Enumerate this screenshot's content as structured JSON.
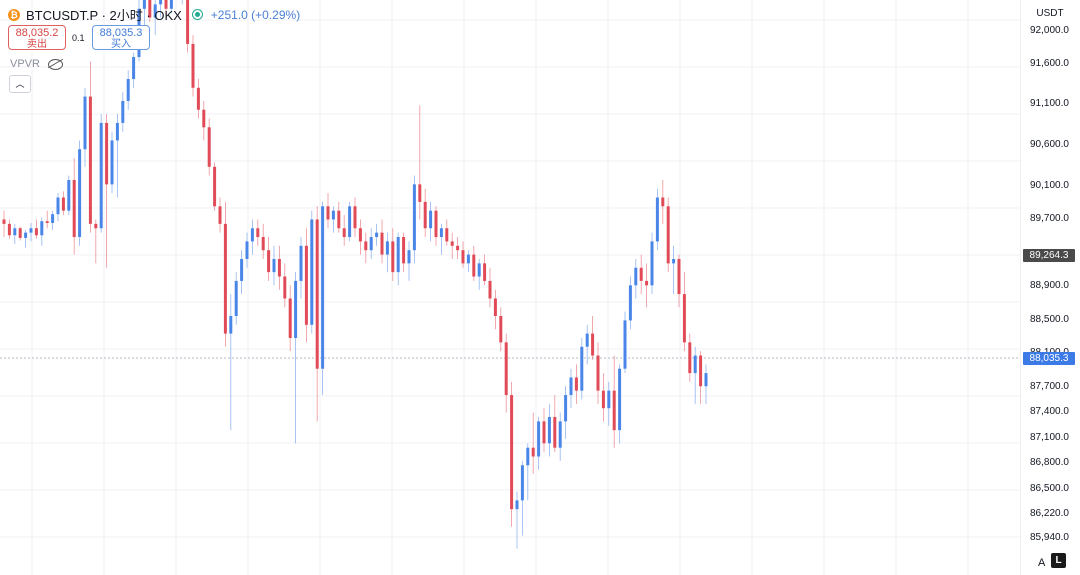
{
  "header": {
    "coin_icon": "bitcoin-icon",
    "title": "BTCUSDT.P · 2小时 · OKX",
    "change": "+251.0 (+0.29%)",
    "market_status_color": "#22ab94"
  },
  "trade": {
    "sell_price": "88,035.2",
    "sell_label": "卖出",
    "spread": "0.1",
    "buy_price": "88,035.3",
    "buy_label": "买入"
  },
  "indicator": {
    "name": "VPVR",
    "visibility_icon": "eye-off-icon",
    "collapse_icon": "chevron-up-icon"
  },
  "price_axis": {
    "unit": "USDT",
    "ticks": [
      "92,000.0",
      "91,600.0",
      "91,100.0",
      "90,600.0",
      "90,100.0",
      "89,700.0",
      "88,900.0",
      "88,500.0",
      "88,100.0",
      "87,700.0",
      "87,400.0",
      "87,100.0",
      "86,800.0",
      "86,500.0",
      "86,220.0",
      "85,940.0"
    ],
    "high_tag": "89,264.3",
    "last_tag": "88,035.3"
  },
  "bottom": {
    "auto_label": "A",
    "logo_icon": "tradingview-logo-icon",
    "logo_text": "L"
  },
  "colors": {
    "up": "#4a86e8",
    "down": "#e04b57",
    "grid": "#f0f2f5"
  },
  "chart_data": {
    "type": "candlestick",
    "symbol": "BTCUSDT.P",
    "interval": "2小时",
    "exchange": "OKX",
    "ylim": [
      85750,
      92300
    ],
    "last_price": 88035.3,
    "marked_price": 89264.3,
    "candles": [
      [
        89800,
        89900,
        89600,
        89750
      ],
      [
        89750,
        89800,
        89580,
        89620
      ],
      [
        89620,
        89750,
        89520,
        89700
      ],
      [
        89700,
        89720,
        89560,
        89590
      ],
      [
        89590,
        89680,
        89480,
        89650
      ],
      [
        89650,
        89760,
        89550,
        89700
      ],
      [
        89700,
        89800,
        89580,
        89620
      ],
      [
        89620,
        89820,
        89500,
        89780
      ],
      [
        89780,
        89900,
        89700,
        89760
      ],
      [
        89760,
        89900,
        89680,
        89860
      ],
      [
        89860,
        90100,
        89780,
        90050
      ],
      [
        90050,
        90120,
        89850,
        89900
      ],
      [
        89900,
        90300,
        89850,
        90250
      ],
      [
        90250,
        90500,
        89400,
        89600
      ],
      [
        89600,
        90700,
        89500,
        90600
      ],
      [
        90600,
        91300,
        90400,
        91200
      ],
      [
        91200,
        91600,
        89650,
        89750
      ],
      [
        89750,
        89800,
        89300,
        89700
      ],
      [
        89700,
        91000,
        89650,
        90900
      ],
      [
        90900,
        91000,
        89250,
        90200
      ],
      [
        90200,
        90800,
        90100,
        90700
      ],
      [
        90700,
        91000,
        90050,
        90900
      ],
      [
        90900,
        91250,
        90800,
        91150
      ],
      [
        91150,
        91500,
        91050,
        91400
      ],
      [
        91400,
        91700,
        91300,
        91650
      ],
      [
        91650,
        92300,
        91600,
        92200
      ],
      [
        92200,
        92350,
        92000,
        92300
      ],
      [
        92300,
        92500,
        92050,
        92100
      ],
      [
        92100,
        92400,
        91900,
        92250
      ],
      [
        92250,
        92500,
        92100,
        92300
      ],
      [
        92300,
        92400,
        92100,
        92200
      ],
      [
        92200,
        92500,
        92150,
        92450
      ],
      [
        92450,
        92600,
        92300,
        92350
      ],
      [
        92350,
        92500,
        92250,
        92400
      ],
      [
        92400,
        92500,
        91700,
        91800
      ],
      [
        91800,
        91900,
        91200,
        91300
      ],
      [
        91300,
        91400,
        90950,
        91050
      ],
      [
        91050,
        91150,
        90700,
        90850
      ],
      [
        90850,
        90950,
        90300,
        90400
      ],
      [
        90400,
        90450,
        89900,
        89950
      ],
      [
        89950,
        90050,
        89650,
        89750
      ],
      [
        89750,
        90000,
        88350,
        88500
      ],
      [
        88500,
        88950,
        87400,
        88700
      ],
      [
        88700,
        89200,
        88600,
        89100
      ],
      [
        89100,
        89450,
        88950,
        89350
      ],
      [
        89350,
        89650,
        89250,
        89550
      ],
      [
        89550,
        89800,
        89400,
        89700
      ],
      [
        89700,
        89800,
        89500,
        89600
      ],
      [
        89600,
        89750,
        89350,
        89450
      ],
      [
        89450,
        89600,
        89100,
        89200
      ],
      [
        89200,
        89500,
        89050,
        89350
      ],
      [
        89350,
        89500,
        89000,
        89150
      ],
      [
        89150,
        89300,
        88800,
        88900
      ],
      [
        88900,
        89050,
        88300,
        88450
      ],
      [
        88450,
        89200,
        87250,
        89100
      ],
      [
        89100,
        89600,
        88900,
        89500
      ],
      [
        89500,
        89700,
        88400,
        88600
      ],
      [
        88600,
        89900,
        88500,
        89800
      ],
      [
        89800,
        89950,
        87500,
        88100
      ],
      [
        88100,
        90000,
        87800,
        89950
      ],
      [
        89950,
        90100,
        89700,
        89800
      ],
      [
        89800,
        89950,
        89650,
        89900
      ],
      [
        89900,
        90000,
        89650,
        89700
      ],
      [
        89700,
        89850,
        89500,
        89600
      ],
      [
        89600,
        90000,
        89550,
        89950
      ],
      [
        89950,
        90050,
        89600,
        89700
      ],
      [
        89700,
        89800,
        89400,
        89550
      ],
      [
        89550,
        89650,
        89300,
        89450
      ],
      [
        89450,
        89700,
        89350,
        89600
      ],
      [
        89600,
        89750,
        89500,
        89650
      ],
      [
        89650,
        89800,
        89300,
        89400
      ],
      [
        89400,
        89650,
        89200,
        89550
      ],
      [
        89550,
        89700,
        89100,
        89200
      ],
      [
        89200,
        89650,
        89050,
        89600
      ],
      [
        89600,
        89650,
        89200,
        89300
      ],
      [
        89300,
        89550,
        89100,
        89450
      ],
      [
        89450,
        90300,
        89300,
        90200
      ],
      [
        90200,
        91100,
        89800,
        90000
      ],
      [
        90000,
        90150,
        89600,
        89700
      ],
      [
        89700,
        90000,
        89550,
        89900
      ],
      [
        89900,
        89950,
        89500,
        89600
      ],
      [
        89600,
        89750,
        89400,
        89700
      ],
      [
        89700,
        89800,
        89500,
        89550
      ],
      [
        89550,
        89650,
        89350,
        89500
      ],
      [
        89500,
        89600,
        89350,
        89450
      ],
      [
        89450,
        89550,
        89250,
        89300
      ],
      [
        89300,
        89450,
        89200,
        89400
      ],
      [
        89400,
        89500,
        89100,
        89150
      ],
      [
        89150,
        89350,
        89000,
        89300
      ],
      [
        89300,
        89400,
        89050,
        89100
      ],
      [
        89100,
        89250,
        88800,
        88900
      ],
      [
        88900,
        89000,
        88550,
        88700
      ],
      [
        88700,
        88800,
        88300,
        88400
      ],
      [
        88400,
        88500,
        87600,
        87800
      ],
      [
        87800,
        87950,
        86300,
        86500
      ],
      [
        86500,
        86700,
        86050,
        86600
      ],
      [
        86600,
        87050,
        86200,
        87000
      ],
      [
        87000,
        87250,
        86600,
        87200
      ],
      [
        87200,
        87600,
        86900,
        87100
      ],
      [
        87100,
        87550,
        86950,
        87500
      ],
      [
        87500,
        87650,
        87150,
        87250
      ],
      [
        87250,
        87700,
        87100,
        87550
      ],
      [
        87550,
        87800,
        87150,
        87200
      ],
      [
        87200,
        87600,
        87050,
        87500
      ],
      [
        87500,
        87900,
        87300,
        87800
      ],
      [
        87800,
        88100,
        87650,
        88000
      ],
      [
        88000,
        88150,
        87700,
        87850
      ],
      [
        87850,
        88450,
        87750,
        88350
      ],
      [
        88350,
        88600,
        88150,
        88500
      ],
      [
        88500,
        88700,
        88200,
        88250
      ],
      [
        88250,
        88400,
        87700,
        87850
      ],
      [
        87850,
        88050,
        87500,
        87650
      ],
      [
        87650,
        87950,
        87450,
        87850
      ],
      [
        87850,
        88250,
        87200,
        87400
      ],
      [
        87400,
        88150,
        87250,
        88100
      ],
      [
        88100,
        88750,
        88050,
        88650
      ],
      [
        88650,
        89150,
        88550,
        89050
      ],
      [
        89050,
        89350,
        88900,
        89250
      ],
      [
        89250,
        89400,
        88950,
        89100
      ],
      [
        89100,
        89300,
        88800,
        89050
      ],
      [
        89050,
        89650,
        88950,
        89550
      ],
      [
        89550,
        90150,
        89450,
        90050
      ],
      [
        90050,
        90250,
        89750,
        89950
      ],
      [
        89950,
        90050,
        89200,
        89300
      ],
      [
        89300,
        89500,
        88950,
        89350
      ],
      [
        89350,
        89400,
        88800,
        88950
      ],
      [
        88950,
        89200,
        88300,
        88400
      ],
      [
        88400,
        88500,
        87950,
        88050
      ],
      [
        88050,
        88350,
        87700,
        88250
      ],
      [
        88250,
        88300,
        87700,
        87900
      ],
      [
        87900,
        88150,
        87700,
        88050
      ]
    ]
  }
}
